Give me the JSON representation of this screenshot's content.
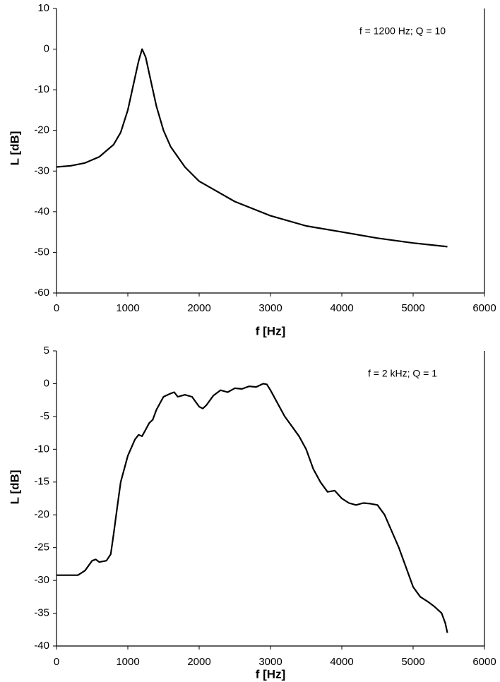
{
  "chart_data": [
    {
      "type": "line",
      "xlabel": "f [Hz]",
      "ylabel": "L [dB]",
      "annotation": "f = 1200 Hz; Q = 10",
      "x": [
        0,
        200,
        400,
        600,
        800,
        900,
        1000,
        1100,
        1150,
        1200,
        1250,
        1300,
        1400,
        1500,
        1600,
        1800,
        2000,
        2200,
        2500,
        3000,
        3500,
        4000,
        4500,
        5000,
        5480
      ],
      "values": [
        -29,
        -28.7,
        -28,
        -26.5,
        -23.5,
        -20.5,
        -15,
        -7,
        -3,
        0,
        -2,
        -6,
        -14,
        -20,
        -24,
        -29,
        -32.5,
        -34.5,
        -37.5,
        -41,
        -43.5,
        -45,
        -46.5,
        -47.7,
        -48.6
      ],
      "color": "#000000",
      "xlim": [
        0,
        6000
      ],
      "xticks": [
        0,
        1000,
        2000,
        3000,
        4000,
        5000,
        6000
      ],
      "ylim": [
        -60,
        10
      ],
      "yticks": [
        -60,
        -50,
        -40,
        -30,
        -20,
        -10,
        0,
        10
      ]
    },
    {
      "type": "line",
      "xlabel": "f [Hz]",
      "ylabel": "L [dB]",
      "annotation": "f = 2 kHz; Q = 1",
      "x": [
        0,
        300,
        400,
        500,
        550,
        600,
        700,
        760,
        800,
        850,
        900,
        1000,
        1100,
        1150,
        1200,
        1250,
        1300,
        1350,
        1400,
        1500,
        1600,
        1650,
        1700,
        1800,
        1900,
        2000,
        2050,
        2100,
        2200,
        2300,
        2400,
        2500,
        2600,
        2700,
        2800,
        2900,
        2950,
        3000,
        3100,
        3200,
        3300,
        3400,
        3500,
        3600,
        3700,
        3800,
        3900,
        4000,
        4100,
        4200,
        4300,
        4400,
        4500,
        4600,
        4700,
        4800,
        4900,
        5000,
        5100,
        5200,
        5300,
        5400,
        5450,
        5480
      ],
      "values": [
        -29.2,
        -29.2,
        -28.5,
        -27,
        -26.8,
        -27.2,
        -27,
        -26,
        -23,
        -19,
        -15,
        -11,
        -8.5,
        -7.8,
        -8,
        -7,
        -6,
        -5.5,
        -4,
        -2,
        -1.5,
        -1.3,
        -2,
        -1.7,
        -2,
        -3.5,
        -3.8,
        -3.3,
        -1.8,
        -1,
        -1.3,
        -0.7,
        -0.8,
        -0.4,
        -0.5,
        0,
        -0.1,
        -1,
        -3,
        -5,
        -6.5,
        -8,
        -10,
        -13,
        -15,
        -16.5,
        -16.3,
        -17.5,
        -18.2,
        -18.5,
        -18.2,
        -18.3,
        -18.5,
        -20,
        -22.5,
        -25,
        -28,
        -31,
        -32.5,
        -33.2,
        -34,
        -35,
        -36.5,
        -38
      ],
      "color": "#000000",
      "xlim": [
        0,
        6000
      ],
      "xticks": [
        0,
        1000,
        2000,
        3000,
        4000,
        5000,
        6000
      ],
      "ylim": [
        -40,
        5
      ],
      "yticks": [
        -40,
        -35,
        -30,
        -25,
        -20,
        -15,
        -10,
        -5,
        0,
        5
      ]
    }
  ]
}
